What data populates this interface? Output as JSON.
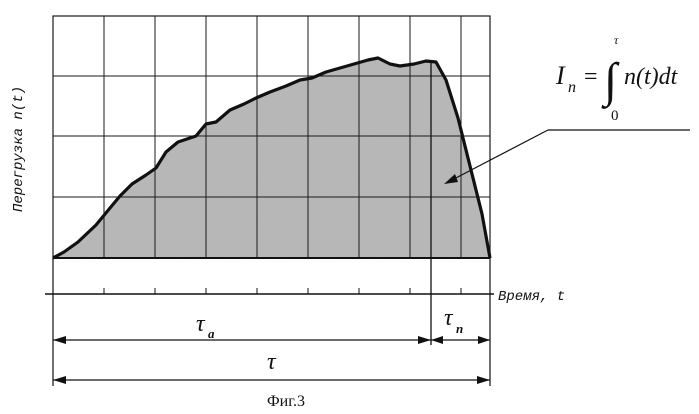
{
  "figure": {
    "caption": "Фиг.3",
    "y_axis_label": "Перегрузка n(t)",
    "x_axis_label": "Время, t",
    "formula": {
      "lhs": "I",
      "lhs_sub": "n",
      "equals": "=",
      "integral_sign": "∫",
      "upper_limit": "τ",
      "lower_limit": "0",
      "integrand": "n(t)dt"
    },
    "dimensions": {
      "tau_a": {
        "symbol": "τ",
        "sub": "a"
      },
      "tau_n": {
        "symbol": "τ",
        "sub": "n"
      },
      "tau": {
        "symbol": "τ"
      }
    },
    "colors": {
      "fill": "#b5b5b5",
      "line": "#111111",
      "grid": "#1a1a1a"
    }
  }
}
